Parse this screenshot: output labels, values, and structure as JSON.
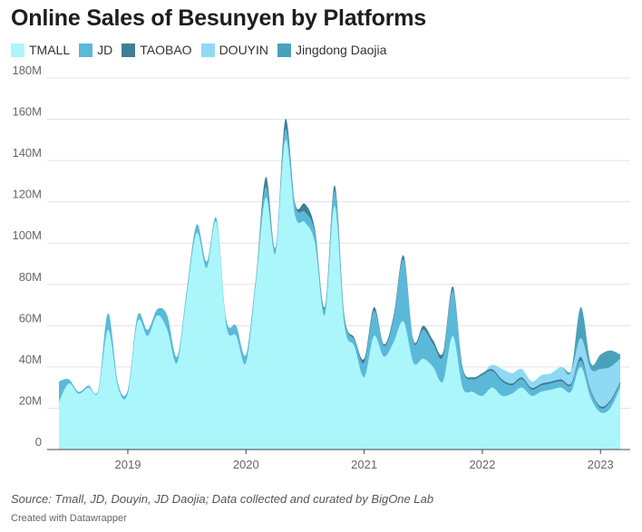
{
  "title": "Online Sales of Besunyen by Platforms",
  "source": "Source: Tmall, JD, Douyin, JD Daojia; Data collected and curated by BigOne Lab",
  "credit": "Created with Datawrapper",
  "colors": {
    "TMALL": "#aaf6fb",
    "JD": "#5ab9d9",
    "TAOBAO": "#3f7f96",
    "DOUYIN": "#8fd9f5",
    "Jingdong Daojia": "#4aa2ba",
    "grid": "#e3e3e3",
    "axis": "#444444"
  },
  "chart_data": {
    "type": "area",
    "stacked": true,
    "smooth": true,
    "title": "Online Sales of Besunyen by Platforms",
    "xlabel": "",
    "ylabel": "",
    "xlim": [
      2018.4,
      2023.45
    ],
    "ylim": [
      0,
      180
    ],
    "y_unit": "M",
    "y_ticks": [
      "0",
      "20M",
      "40M",
      "60M",
      "80M",
      "100M",
      "120M",
      "140M",
      "160M",
      "180M"
    ],
    "y_tick_values": [
      0,
      20,
      40,
      60,
      80,
      100,
      120,
      140,
      160,
      180
    ],
    "x_ticks": [
      "2019",
      "2020",
      "2021",
      "2022",
      "2023"
    ],
    "x_tick_values": [
      2019,
      2020,
      2021,
      2022,
      2023
    ],
    "grid": true,
    "legend_position": "top-left",
    "legend": [
      "TMALL",
      "JD",
      "TAOBAO",
      "DOUYIN",
      "Jingdong Daojia"
    ],
    "x": [
      2018.417,
      2018.5,
      2018.583,
      2018.667,
      2018.75,
      2018.833,
      2018.917,
      2019.0,
      2019.083,
      2019.167,
      2019.25,
      2019.333,
      2019.417,
      2019.5,
      2019.583,
      2019.667,
      2019.75,
      2019.833,
      2019.917,
      2020.0,
      2020.083,
      2020.167,
      2020.25,
      2020.333,
      2020.417,
      2020.5,
      2020.583,
      2020.667,
      2020.75,
      2020.833,
      2020.917,
      2021.0,
      2021.083,
      2021.167,
      2021.25,
      2021.333,
      2021.417,
      2021.5,
      2021.583,
      2021.667,
      2021.75,
      2021.833,
      2021.917,
      2022.0,
      2022.083,
      2022.167,
      2022.25,
      2022.333,
      2022.417,
      2022.5,
      2022.583,
      2022.667,
      2022.75,
      2022.833,
      2022.917,
      2023.0,
      2023.083,
      2023.167
    ],
    "series": [
      {
        "name": "TMALL",
        "values": [
          23,
          32,
          27,
          30,
          28,
          58,
          30,
          27,
          62,
          55,
          65,
          58,
          42,
          75,
          105,
          88,
          110,
          60,
          55,
          42,
          80,
          122,
          95,
          150,
          113,
          110,
          100,
          65,
          118,
          60,
          50,
          35,
          55,
          45,
          52,
          62,
          42,
          44,
          40,
          33,
          55,
          30,
          28,
          26,
          30,
          26,
          27,
          30,
          26,
          28,
          29,
          30,
          28,
          40,
          25,
          18,
          20,
          30
        ]
      },
      {
        "name": "JD",
        "values": [
          10,
          2,
          1,
          1,
          1,
          8,
          2,
          2,
          3,
          3,
          3,
          7,
          3,
          3,
          4,
          3,
          2,
          3,
          5,
          4,
          3,
          5,
          3,
          5,
          5,
          5,
          5,
          3,
          7,
          4,
          3,
          7,
          12,
          5,
          11,
          30,
          10,
          14,
          11,
          12,
          22,
          9,
          6,
          10,
          8,
          7,
          4,
          4,
          3,
          3,
          3,
          3,
          3,
          3,
          3,
          2,
          3,
          2
        ]
      },
      {
        "name": "TAOBAO",
        "values": [
          0,
          0,
          0,
          0,
          0,
          0,
          0,
          0,
          0,
          0,
          0,
          0,
          0,
          0,
          0,
          0,
          0,
          0,
          0,
          0,
          0,
          5,
          0,
          5,
          1,
          4,
          2,
          1,
          3,
          1,
          1,
          2,
          2,
          1,
          2,
          2,
          1,
          2,
          2,
          2,
          2,
          1,
          1,
          1,
          1,
          1,
          1,
          1,
          1,
          1,
          1,
          1,
          1,
          2,
          1,
          1,
          1,
          1
        ]
      },
      {
        "name": "DOUYIN",
        "values": [
          0,
          0,
          0,
          0,
          0,
          0,
          0,
          0,
          0,
          0,
          0,
          0,
          0,
          0,
          0,
          0,
          0,
          0,
          0,
          0,
          0,
          0,
          0,
          0,
          0,
          0,
          0,
          0,
          0,
          0,
          0,
          0,
          0,
          0,
          0,
          0,
          0,
          0,
          0,
          0,
          0,
          0,
          0,
          0,
          2,
          5,
          5,
          4,
          3,
          4,
          4,
          6,
          6,
          9,
          10,
          18,
          16,
          11
        ]
      },
      {
        "name": "Jingdong Daojia",
        "values": [
          0,
          0,
          0,
          0,
          0,
          0,
          0,
          0,
          0,
          0,
          0,
          0,
          0,
          0,
          0,
          0,
          0,
          0,
          0,
          0,
          0,
          0,
          0,
          0,
          0,
          0,
          0,
          0,
          0,
          0,
          0,
          0,
          0,
          0,
          0,
          0,
          0,
          0,
          0,
          0,
          0,
          0,
          0,
          0,
          0,
          0,
          0,
          0,
          0,
          0,
          0,
          0,
          0,
          15,
          3,
          7,
          8,
          2
        ]
      }
    ]
  }
}
